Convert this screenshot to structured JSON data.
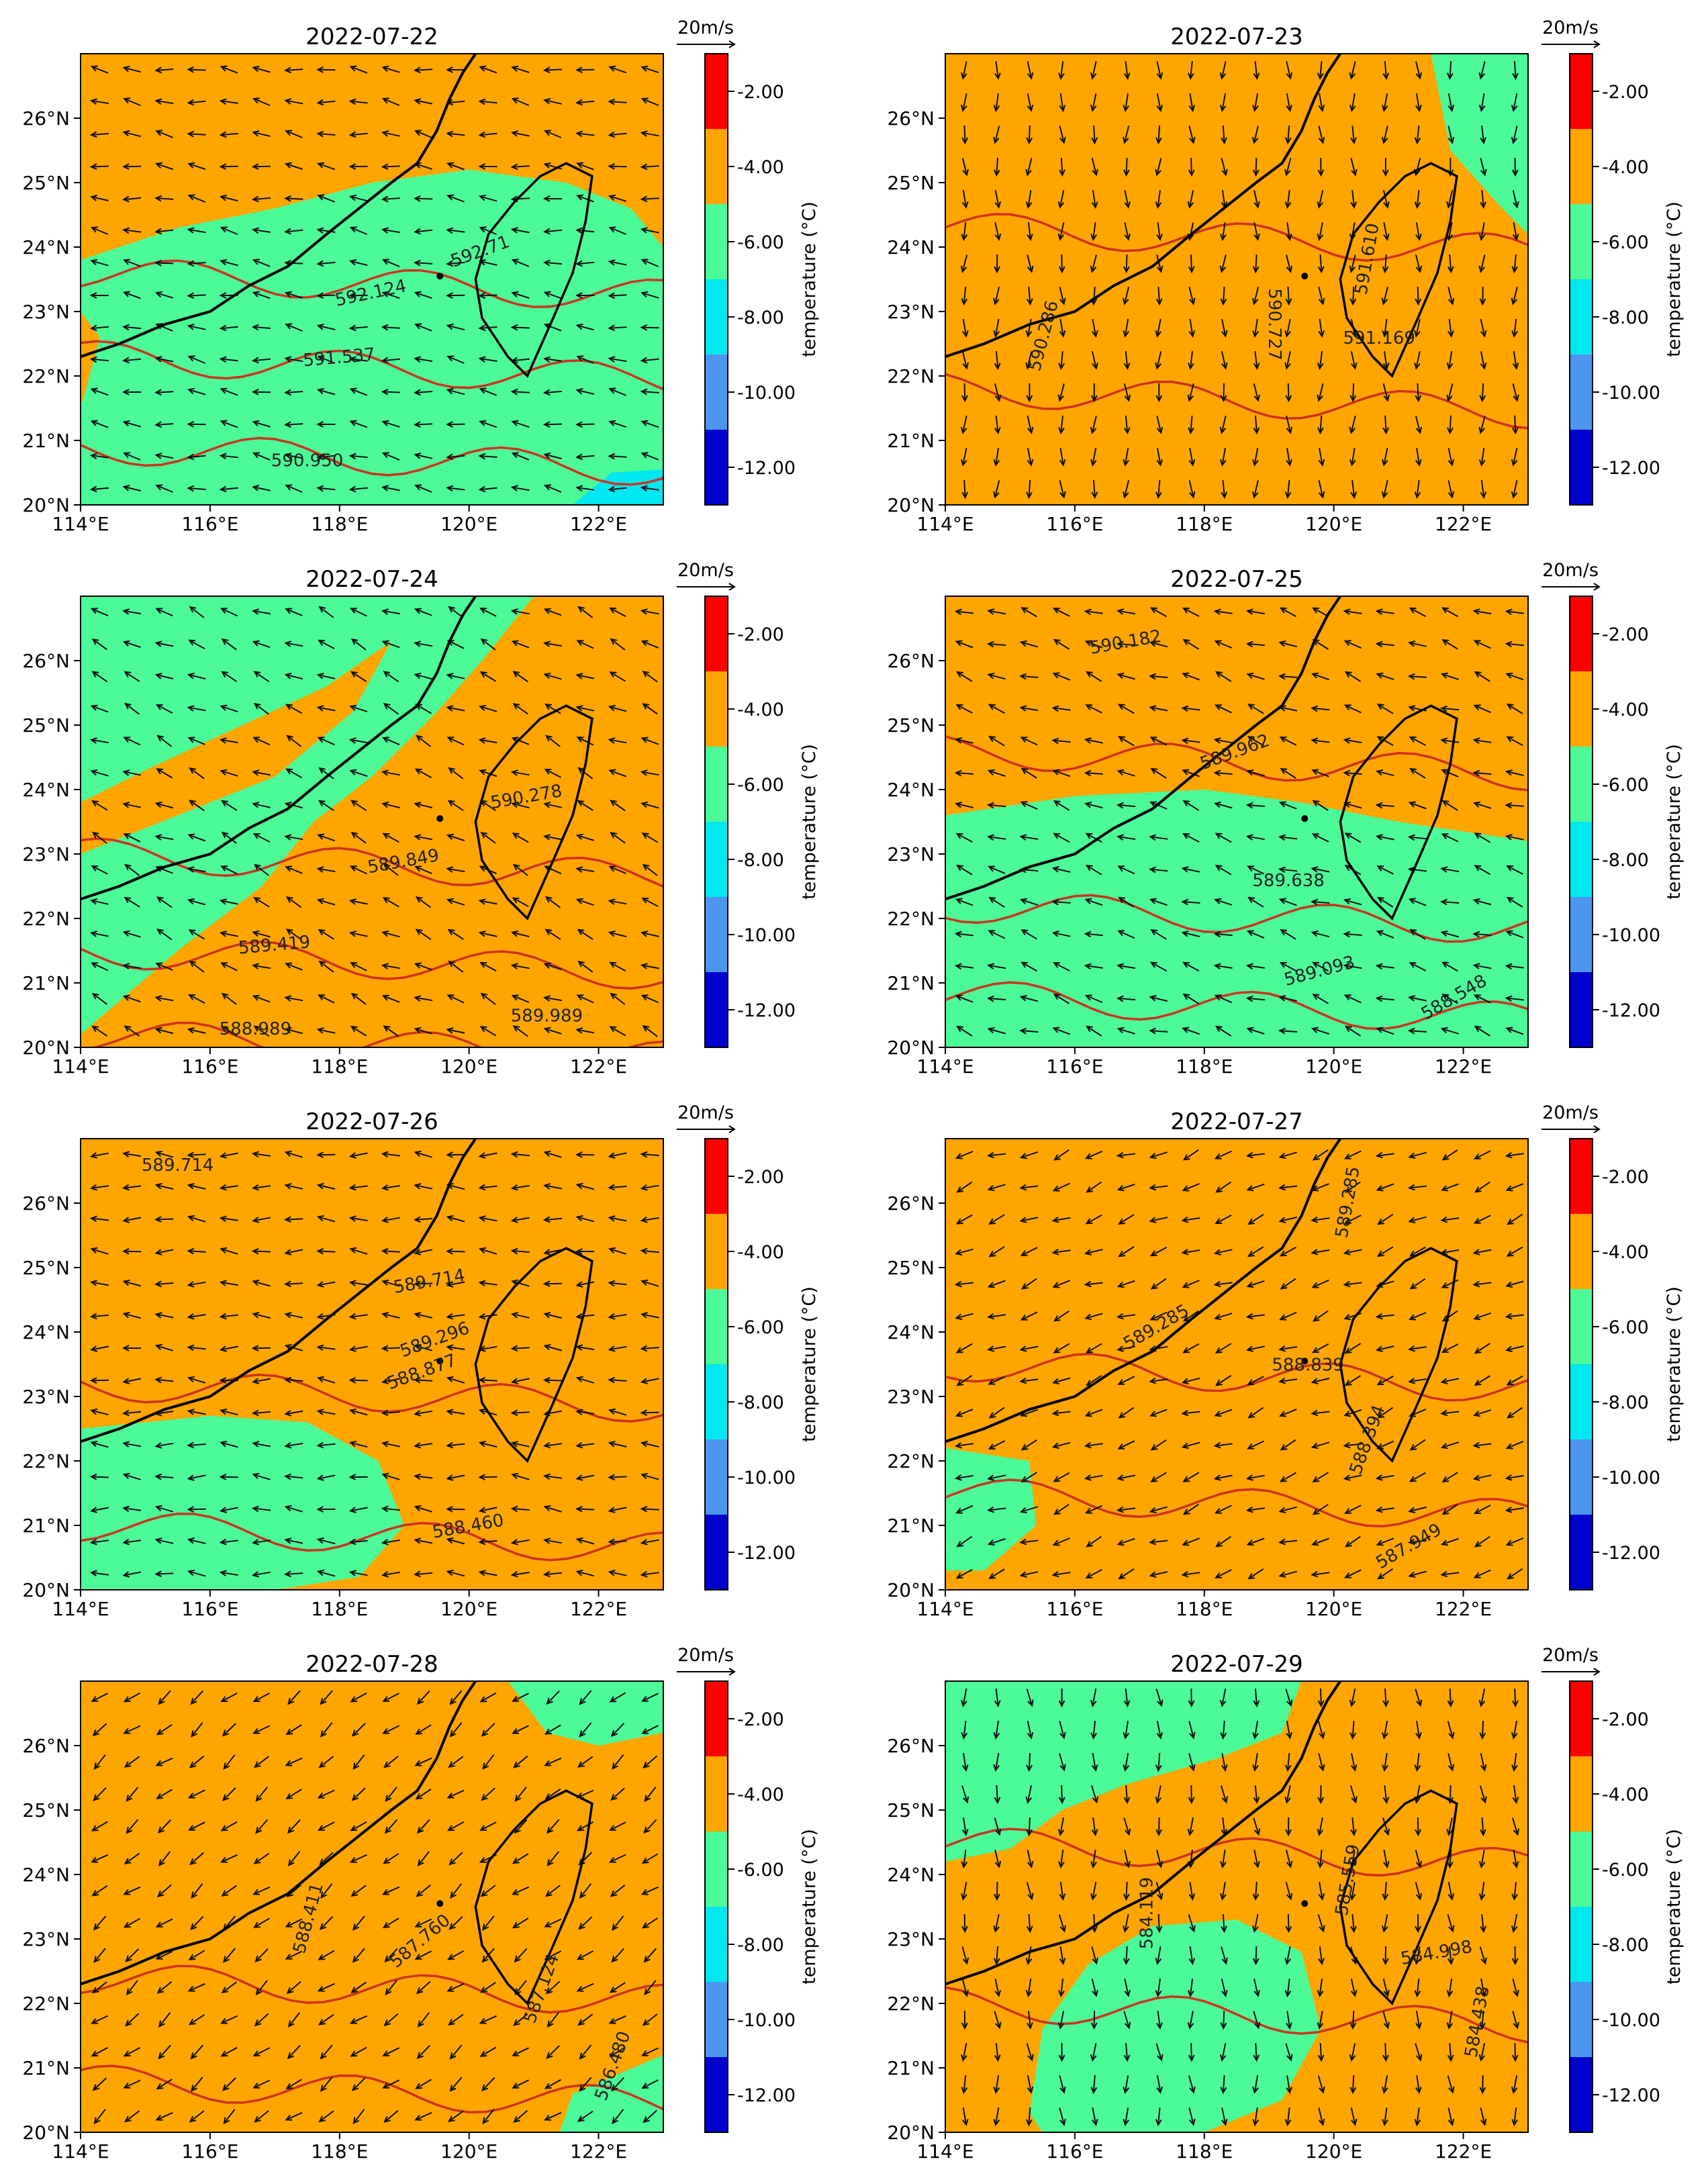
{
  "figure": {
    "panel_order": [
      "2022-07-22",
      "2022-07-23",
      "2022-07-24",
      "2022-07-25",
      "2022-07-26",
      "2022-07-27",
      "2022-07-28",
      "2022-07-29"
    ]
  },
  "axes": {
    "lon_ticks": [
      "114°E",
      "116°E",
      "118°E",
      "120°E",
      "122°E"
    ],
    "lat_ticks": [
      "20°N",
      "21°N",
      "22°N",
      "23°N",
      "24°N",
      "25°N",
      "26°N"
    ],
    "lon_range": [
      114,
      123
    ],
    "lat_range": [
      20,
      27
    ]
  },
  "colorbar": {
    "label": "temperature (°C)",
    "tick_labels": [
      "-2.00",
      "-4.00",
      "-6.00",
      "-8.00",
      "-10.00",
      "-12.00"
    ],
    "levels": [
      -13,
      -12,
      -10,
      -8,
      -6,
      -4,
      -2,
      -1
    ],
    "colors": [
      "#0000cc",
      "#0000cc",
      "#4d96f0",
      "#00e8f0",
      "#4cfa98",
      "#ffa500",
      "#ff0000"
    ],
    "color_note_ignore": ""
  },
  "quiver_key": {
    "label": "20m/s"
  },
  "colors": {
    "orange": "#ffa500",
    "green": "#4cfa98",
    "cyan": "#00e8f0",
    "contour": "#cc3322",
    "coast": "#000000"
  },
  "panels": [
    {
      "title": "2022-07-22",
      "base": "orange",
      "contour_labels": [
        {
          "text": "592.71",
          "lon": 120.2,
          "lat": 23.85,
          "rot": -20
        },
        {
          "text": "592.124",
          "lon": 118.5,
          "lat": 23.2,
          "rot": -12
        },
        {
          "text": "591.537",
          "lon": 118.0,
          "lat": 22.2,
          "rot": -5
        },
        {
          "text": "590.950",
          "lon": 117.5,
          "lat": 20.6,
          "rot": 0
        }
      ],
      "contour_lats": [
        23.6,
        22.3,
        20.9
      ],
      "wind_u": -1.0,
      "wind_v": 0.15
    },
    {
      "title": "2022-07-23",
      "base": "green",
      "contour_labels": [
        {
          "text": "591.610",
          "lon": 120.6,
          "lat": 23.8,
          "rot": -80
        },
        {
          "text": "591.169",
          "lon": 120.7,
          "lat": 22.5,
          "rot": 0
        },
        {
          "text": "590.727",
          "lon": 119.0,
          "lat": 22.8,
          "rot": 90
        },
        {
          "text": "590.286",
          "lon": 115.6,
          "lat": 22.6,
          "rot": -75
        }
      ],
      "contour_lats": [
        24.3,
        21.8
      ],
      "wind_u": 0.0,
      "wind_v": -1.0
    },
    {
      "title": "2022-07-24",
      "base": "green",
      "contour_labels": [
        {
          "text": "590.278",
          "lon": 120.9,
          "lat": 23.8,
          "rot": -10
        },
        {
          "text": "589.849",
          "lon": 119.0,
          "lat": 22.8,
          "rot": -10
        },
        {
          "text": "589.419",
          "lon": 117.0,
          "lat": 21.5,
          "rot": -5
        },
        {
          "text": "588.989",
          "lon": 116.7,
          "lat": 20.2,
          "rot": 0
        },
        {
          "text": "589.989",
          "lon": 121.2,
          "lat": 20.4,
          "rot": 0
        }
      ],
      "contour_lats": [
        23.0,
        21.5,
        20.2
      ],
      "wind_u": -0.8,
      "wind_v": 0.35
    },
    {
      "title": "2022-07-25",
      "base": "orange",
      "contour_labels": [
        {
          "text": "590.182",
          "lon": 116.8,
          "lat": 26.2,
          "rot": -10
        },
        {
          "text": "589.962",
          "lon": 118.5,
          "lat": 24.5,
          "rot": -20
        },
        {
          "text": "589.638",
          "lon": 119.3,
          "lat": 22.5,
          "rot": 0
        },
        {
          "text": "589.093",
          "lon": 119.8,
          "lat": 21.1,
          "rot": -15
        },
        {
          "text": "588.548",
          "lon": 121.9,
          "lat": 20.7,
          "rot": -30
        }
      ],
      "contour_lats": [
        24.6,
        22.2,
        20.8
      ],
      "wind_u": -0.9,
      "wind_v": 0.3
    },
    {
      "title": "2022-07-26",
      "base": "orange",
      "contour_labels": [
        {
          "text": "589.714",
          "lon": 115.5,
          "lat": 26.5,
          "rot": 0
        },
        {
          "text": "589.714",
          "lon": 119.4,
          "lat": 24.7,
          "rot": -10
        },
        {
          "text": "589.296",
          "lon": 119.5,
          "lat": 23.8,
          "rot": -20
        },
        {
          "text": "588.877",
          "lon": 119.3,
          "lat": 23.3,
          "rot": -20
        },
        {
          "text": "588.460",
          "lon": 120.0,
          "lat": 20.9,
          "rot": -10
        }
      ],
      "contour_lats": [
        23.2,
        21.0
      ],
      "wind_u": -1.0,
      "wind_v": 0.05
    },
    {
      "title": "2022-07-27",
      "base": "orange",
      "contour_labels": [
        {
          "text": "589.285",
          "lon": 120.3,
          "lat": 26.0,
          "rot": -80
        },
        {
          "text": "589.285",
          "lon": 117.3,
          "lat": 24.0,
          "rot": -30
        },
        {
          "text": "588.839",
          "lon": 119.6,
          "lat": 23.4,
          "rot": 0
        },
        {
          "text": "588.394",
          "lon": 120.6,
          "lat": 22.3,
          "rot": -70
        },
        {
          "text": "587.949",
          "lon": 121.2,
          "lat": 20.6,
          "rot": -30
        }
      ],
      "contour_lats": [
        23.5,
        21.5
      ],
      "wind_u": -0.8,
      "wind_v": -0.3
    },
    {
      "title": "2022-07-28",
      "base": "orange",
      "contour_labels": [
        {
          "text": "588.411",
          "lon": 117.6,
          "lat": 23.3,
          "rot": -75
        },
        {
          "text": "587.760",
          "lon": 119.3,
          "lat": 22.9,
          "rot": -40
        },
        {
          "text": "587.124",
          "lon": 121.2,
          "lat": 22.2,
          "rot": -70
        },
        {
          "text": "586.480",
          "lon": 122.3,
          "lat": 21.0,
          "rot": -70
        }
      ],
      "contour_lats": [
        22.4,
        20.8
      ],
      "wind_u": -0.7,
      "wind_v": -0.55
    },
    {
      "title": "2022-07-29",
      "base": "orange",
      "contour_labels": [
        {
          "text": "584.119",
          "lon": 117.2,
          "lat": 23.4,
          "rot": -90
        },
        {
          "text": "585.559",
          "lon": 120.3,
          "lat": 23.9,
          "rot": -80
        },
        {
          "text": "584.998",
          "lon": 121.6,
          "lat": 22.7,
          "rot": -10
        },
        {
          "text": "584.438",
          "lon": 122.3,
          "lat": 21.7,
          "rot": -80
        }
      ],
      "contour_lats": [
        24.5,
        22.0
      ],
      "wind_u": 0.05,
      "wind_v": -1.0
    }
  ]
}
